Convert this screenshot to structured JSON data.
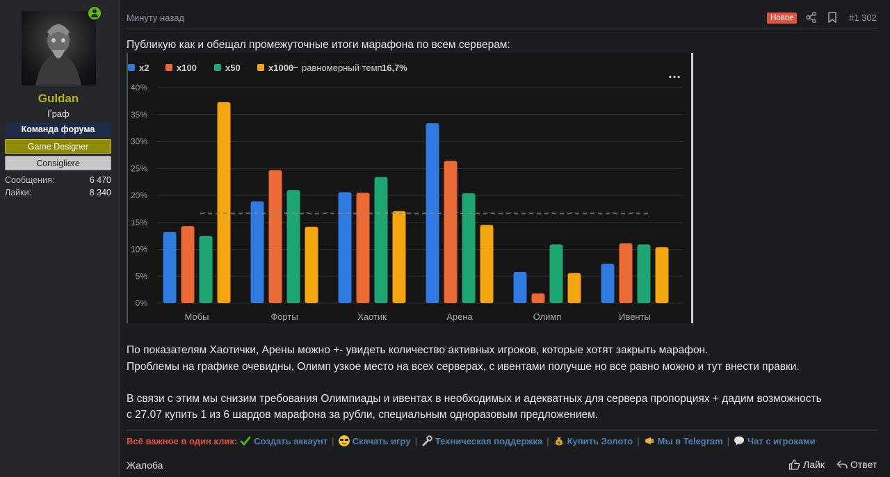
{
  "user": {
    "name": "Guldan",
    "title": "Граф",
    "banners": [
      "Команда форума",
      "Game Designer",
      "Consigliere"
    ],
    "stats": [
      {
        "label": "Сообщения:",
        "value": "6 470"
      },
      {
        "label": "Лайки:",
        "value": "8 340"
      }
    ]
  },
  "post": {
    "date": "Минуту назад",
    "new_badge": "Новое",
    "number": "#1 302",
    "intro": "Публикую как и обещал промежуточные итоги марафона по всем серверам:",
    "para1": "По показателям Хаотички, Арены можно +- увидеть количество активных игроков, которые хотят закрыть марафон.",
    "para2": "Проблемы на графике очевидны, Олимп узкое место на всех серверах, с ивентами получше но все равно можно и тут внести правки.",
    "para3_line1": "В связи с этим мы снизим требования Олимпиады и ивентах в необходимых и адекватных для сервера пропорциях + дадим возможность",
    "para3_line2": "с 27.07 купить 1 из 6 шардов марафона за рубли, специальным одноразовым предложением."
  },
  "chart_data": {
    "type": "bar",
    "categories": [
      "Мобы",
      "Форты",
      "Хаотик",
      "Арена",
      "Олимп",
      "Ивенты"
    ],
    "series": [
      {
        "name": "x2",
        "color": "#2f7ae0",
        "values": [
          13.2,
          18.9,
          20.6,
          33.4,
          5.8,
          7.3
        ]
      },
      {
        "name": "x100",
        "color": "#eb6a34",
        "values": [
          14.3,
          24.7,
          20.5,
          26.4,
          1.8,
          11.1
        ]
      },
      {
        "name": "x50",
        "color": "#1da672",
        "values": [
          12.5,
          21.0,
          23.4,
          20.4,
          10.9,
          10.9
        ]
      },
      {
        "name": "x1000",
        "color": "#f2a50c",
        "values": [
          37.3,
          14.2,
          17.1,
          14.5,
          5.6,
          10.4
        ]
      }
    ],
    "reference_line": {
      "label": "равномерный темп",
      "value_label": "16,7%",
      "value": 16.7
    },
    "ylim": [
      0,
      40
    ],
    "yticks": [
      "0%",
      "5%",
      "10%",
      "15%",
      "20%",
      "25%",
      "30%",
      "35%",
      "40%"
    ],
    "menu_label": "···",
    "legend": "top-left"
  },
  "footer": {
    "lead": "Всё важное в один клик:",
    "links": [
      {
        "label": "Создать аккаунт",
        "icon": "checkmark-icon"
      },
      {
        "label": "Скачать игру",
        "icon": "sunglasses-icon"
      },
      {
        "label": "Техническая поддержка",
        "icon": "wrench-icon"
      },
      {
        "label": "Купить Золото",
        "icon": "moneybag-icon"
      },
      {
        "label": "Мы в Telegram",
        "icon": "megaphone-icon"
      },
      {
        "label": "Чат с игроками",
        "icon": "speech-bubble-icon"
      }
    ],
    "report": "Жалоба",
    "like": "Лайк",
    "reply": "Ответ"
  },
  "colors": {
    "username": "#b9b11a",
    "new_badge": "#e0523d",
    "link": "#4a7fb0"
  }
}
